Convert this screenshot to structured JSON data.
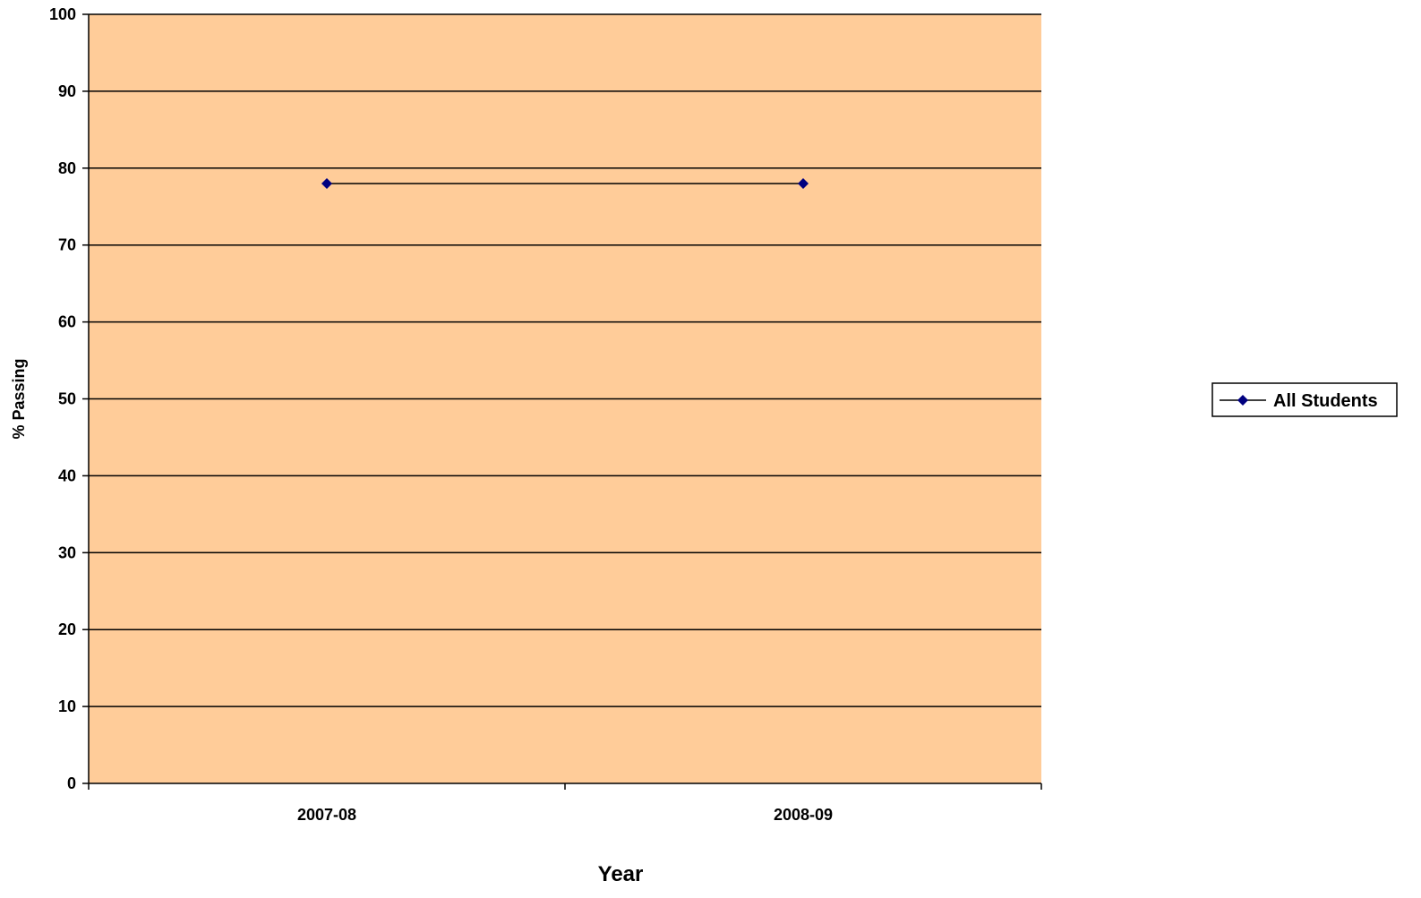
{
  "chart_data": {
    "type": "line",
    "categories": [
      "2007-08",
      "2008-09"
    ],
    "series": [
      {
        "name": "All Students",
        "values": [
          78,
          78
        ],
        "color": "#000080",
        "line_color": "#000000",
        "marker": "diamond"
      }
    ],
    "title": "",
    "xlabel": "Year",
    "ylabel": "% Passing",
    "ylim": [
      0,
      100
    ],
    "yticks": [
      0,
      10,
      20,
      30,
      40,
      50,
      60,
      70,
      80,
      90,
      100
    ],
    "grid": true,
    "plot_background": "#FFCC99",
    "legend_position": "right"
  }
}
